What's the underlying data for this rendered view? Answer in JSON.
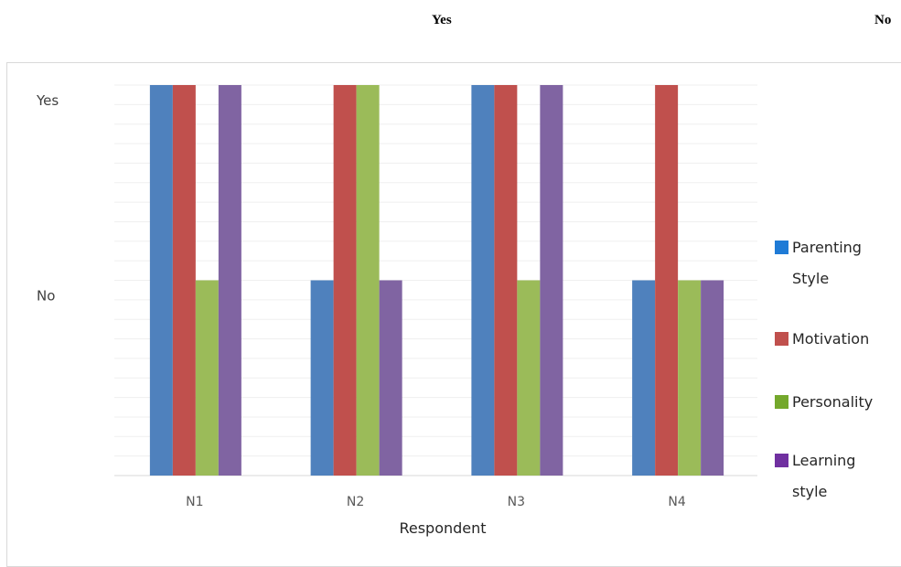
{
  "header": {
    "yes_label": "Yes",
    "no_label": "No"
  },
  "chart_data": {
    "type": "bar",
    "title": "",
    "xlabel": "Respondent",
    "ylabel": "",
    "categories": [
      "N1",
      "N2",
      "N3",
      "N4"
    ],
    "y_tick_labels": [
      "No",
      "Yes"
    ],
    "ylim": [
      0,
      2
    ],
    "grid": true,
    "legend_position": "right",
    "series": [
      {
        "name": "Parenting Style",
        "color": "#4f81bd",
        "values": [
          2,
          1,
          2,
          1
        ]
      },
      {
        "name": "Motivation",
        "color": "#c0504d",
        "values": [
          2,
          2,
          2,
          2
        ]
      },
      {
        "name": "Personality",
        "color": "#9bbb59",
        "values": [
          1,
          2,
          1,
          1
        ]
      },
      {
        "name": "Learning style",
        "color": "#8064a2",
        "values": [
          2,
          1,
          2,
          1
        ]
      }
    ],
    "legend": [
      {
        "lines": [
          "Parenting",
          "Style"
        ],
        "color": "#1f7bd6"
      },
      {
        "lines": [
          "Motivation"
        ],
        "color": "#c0504d"
      },
      {
        "lines": [
          "Personality"
        ],
        "color": "#74a82c"
      },
      {
        "lines": [
          "Learning",
          "style"
        ],
        "color": "#7030a0"
      }
    ]
  }
}
